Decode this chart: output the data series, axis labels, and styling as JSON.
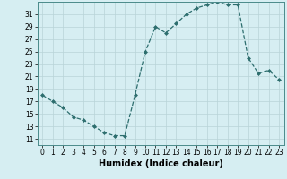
{
  "x": [
    0,
    1,
    2,
    3,
    4,
    5,
    6,
    7,
    8,
    9,
    10,
    11,
    12,
    13,
    14,
    15,
    16,
    17,
    18,
    19,
    20,
    21,
    22,
    23
  ],
  "y": [
    18,
    17,
    16,
    14.5,
    14,
    13,
    12,
    11.5,
    11.5,
    18,
    25,
    29,
    28,
    29.5,
    31,
    32,
    32.5,
    33,
    32.5,
    32.5,
    24,
    21.5,
    22,
    20.5
  ],
  "line_color": "#2d6e6e",
  "marker": "D",
  "marker_size": 2,
  "bg_color": "#d6eef2",
  "grid_color": "#b8d4d8",
  "xlabel": "Humidex (Indice chaleur)",
  "xlim": [
    -0.5,
    23.5
  ],
  "ylim": [
    10,
    33
  ],
  "yticks": [
    11,
    13,
    15,
    17,
    19,
    21,
    23,
    25,
    27,
    29,
    31
  ],
  "xticks": [
    0,
    1,
    2,
    3,
    4,
    5,
    6,
    7,
    8,
    9,
    10,
    11,
    12,
    13,
    14,
    15,
    16,
    17,
    18,
    19,
    20,
    21,
    22,
    23
  ],
  "xlabel_fontsize": 7,
  "tick_fontsize": 5.5,
  "linewidth": 0.9
}
